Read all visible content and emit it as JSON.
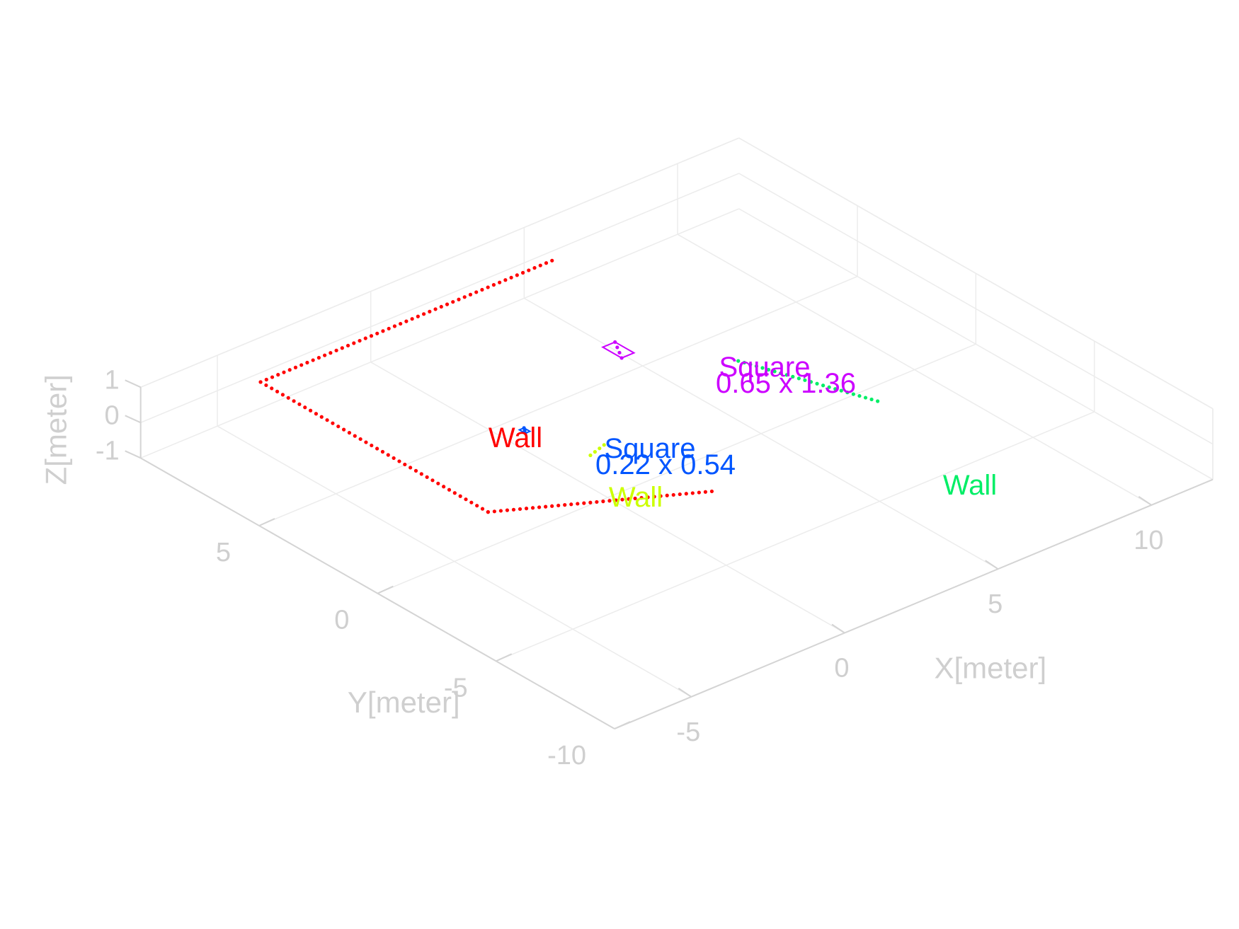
{
  "chart_data": {
    "type": "scatter",
    "projection": "3d",
    "grid": true,
    "axes": {
      "x": {
        "label": "X[meter]",
        "ticks": [
          -5,
          0,
          5,
          10
        ],
        "tick_labels": [
          "-5",
          "0",
          "5",
          "10"
        ],
        "lim": [
          -7.5,
          12
        ]
      },
      "y": {
        "label": "Y[meter]",
        "ticks": [
          -10,
          -5,
          0,
          5
        ],
        "tick_labels": [
          "-10",
          "-5",
          "0",
          "5"
        ],
        "lim": [
          -10,
          10
        ]
      },
      "z": {
        "label": "Z[meter]",
        "ticks": [
          -1,
          0,
          1
        ],
        "tick_labels": [
          "-1",
          "0",
          "1"
        ],
        "lim": [
          -1,
          1
        ]
      }
    },
    "series": [
      {
        "color": "#ff0000",
        "label": "Wall",
        "points": [
          [
            -3.9,
            0.0,
            0.0
          ],
          [
            -3.9,
            9.6,
            0.0
          ],
          [
            5.6,
            9.6,
            0.0
          ]
        ],
        "dotted": true,
        "extra": [
          [
            -3.9,
            0.0,
            0.0
          ],
          [
            1.0,
            -3.1,
            0.0
          ]
        ]
      },
      {
        "color": "#00ee66",
        "label": "Wall",
        "points": [
          [
            7.1,
            -2.2,
            0.0
          ],
          [
            5.8,
            2.0,
            0.0
          ]
        ],
        "dotted": true
      },
      {
        "color": "#ccff00",
        "label": "Wall",
        "points": [
          [
            -0.1,
            0.6,
            0.0
          ],
          [
            0.5,
            0.8,
            0.0
          ]
        ],
        "dotted": true
      },
      {
        "color": "#cc00ff",
        "label": "Square",
        "size": "0.65 x 1.36",
        "points": [
          [
            3.7,
            4.2,
            0.0
          ],
          [
            4.1,
            5.0,
            0.0
          ]
        ]
      },
      {
        "color": "#0055ff",
        "label": "Square",
        "size": "0.22 x 0.54",
        "points": [
          [
            -0.6,
            2.7,
            0.0
          ],
          [
            -0.45,
            2.95,
            0.0
          ]
        ]
      }
    ],
    "annotations": [
      {
        "text": "Wall",
        "color": "#ff0000"
      },
      {
        "text": "Square",
        "color": "#0055ff"
      },
      {
        "text": "0.22 x 0.54",
        "color": "#0055ff"
      },
      {
        "text": "Wall",
        "color": "#ccff00"
      },
      {
        "text": "Square",
        "color": "#cc00ff"
      },
      {
        "text": "0.65 x 1.36",
        "color": "#cc00ff"
      },
      {
        "text": "Wall",
        "color": "#00ee66"
      }
    ]
  }
}
